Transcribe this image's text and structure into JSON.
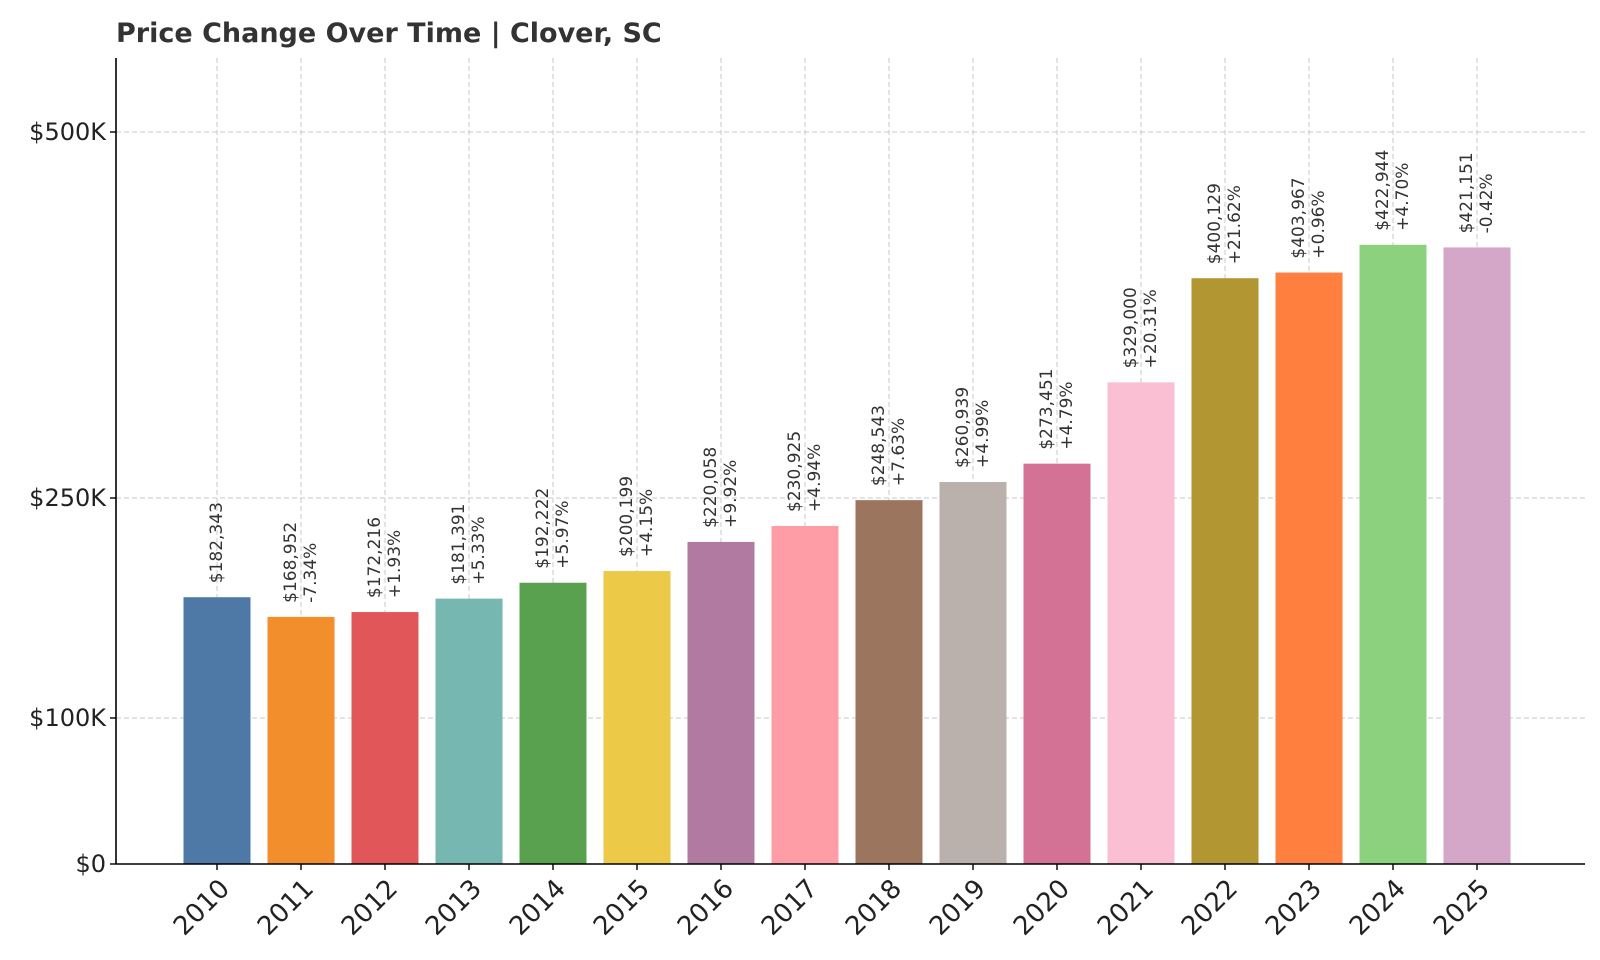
{
  "chart_data": {
    "type": "bar",
    "title": "Price Change Over Time | Clover, SC",
    "xlabel": "",
    "ylabel": "",
    "categories": [
      "2010",
      "2011",
      "2012",
      "2013",
      "2014",
      "2015",
      "2016",
      "2017",
      "2018",
      "2019",
      "2020",
      "2021",
      "2022",
      "2023",
      "2024",
      "2025"
    ],
    "values": [
      182343,
      168952,
      172216,
      181391,
      192222,
      200199,
      220058,
      230925,
      248543,
      260939,
      273451,
      329000,
      400129,
      403967,
      422944,
      421151
    ],
    "value_labels": [
      "$182,343",
      "$168,952",
      "$172,216",
      "$181,391",
      "$192,222",
      "$200,199",
      "$220,058",
      "$230,925",
      "$248,543",
      "$260,939",
      "$273,451",
      "$329,000",
      "$400,129",
      "$403,967",
      "$422,944",
      "$421,151"
    ],
    "change_labels": [
      "",
      "-7.34%",
      "+1.93%",
      "+5.33%",
      "+5.97%",
      "+4.15%",
      "+9.92%",
      "+4.94%",
      "+7.63%",
      "+4.99%",
      "+4.79%",
      "+20.31%",
      "+21.62%",
      "+0.96%",
      "+4.70%",
      "-0.42%"
    ],
    "colors": [
      "#4e79a7",
      "#f28e2b",
      "#e15759",
      "#76b7b2",
      "#59a14f",
      "#edc948",
      "#b07aa1",
      "#ff9da7",
      "#9c755f",
      "#bab0ac",
      "#d37295",
      "#fabfd2",
      "#b19631",
      "#ff7f3f",
      "#8cd17d",
      "#d4a6c8"
    ],
    "y_ticks": [
      0,
      100000,
      250000,
      500000
    ],
    "y_tick_labels": [
      "$0",
      "$100K",
      "$250K",
      "$500K"
    ],
    "ylim": [
      0,
      550000
    ],
    "grid": true,
    "legend": "none"
  }
}
